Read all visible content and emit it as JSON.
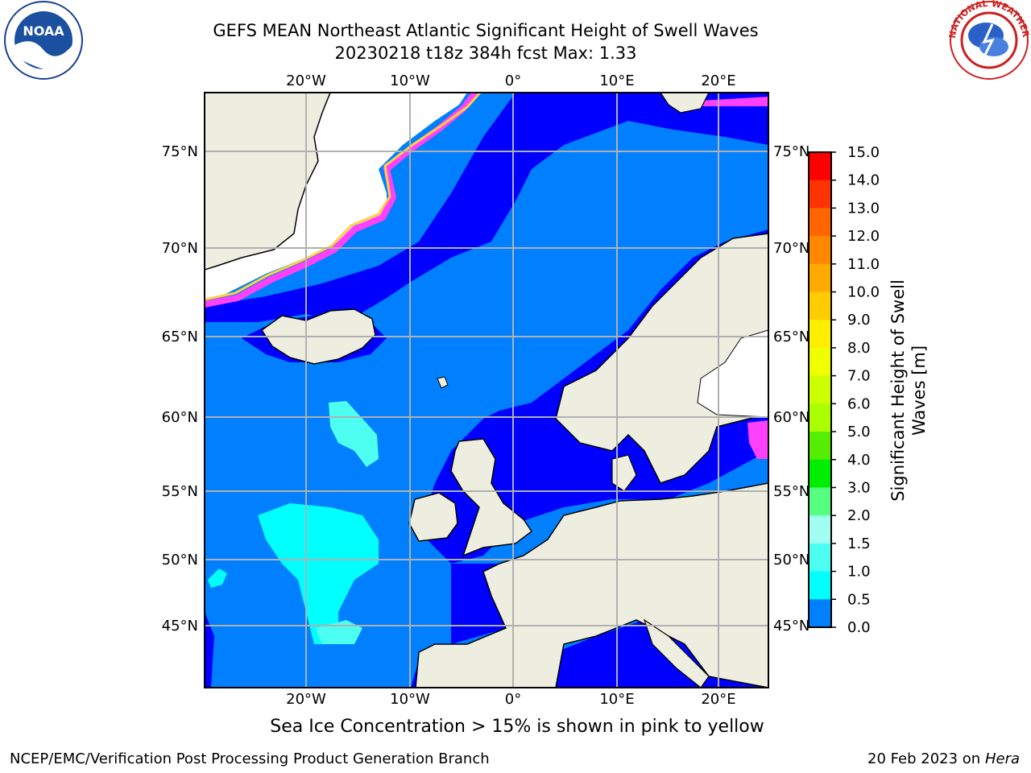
{
  "header": {
    "title_line1": "GEFS MEAN Northeast Atlantic Significant Height of Swell Waves",
    "title_line2": "20230218 t18z 384h fcst   Max: 1.33"
  },
  "logos": {
    "left": {
      "name": "noaa-logo",
      "text": "NOAA"
    },
    "right": {
      "name": "national-weather-service-logo",
      "text": "NATIONAL WEATHER SERVICE"
    }
  },
  "map": {
    "lon_ticks_top": [
      "20°W",
      "10°W",
      "0°",
      "10°E",
      "20°E"
    ],
    "lon_ticks_bottom": [
      "20°W",
      "10°W",
      "0°",
      "10°E",
      "20°E"
    ],
    "lat_ticks_left": [
      "75°N",
      "70°N",
      "65°N",
      "60°N",
      "55°N",
      "50°N",
      "45°N"
    ],
    "lat_ticks_right": [
      "75°N",
      "70°N",
      "65°N",
      "60°N",
      "55°N",
      "50°N",
      "45°N"
    ],
    "colors": {
      "land": "#eeeee0",
      "ice_free_open": "#ffffff",
      "sea_0_05": "#0000ff",
      "sea_05_10": "#0080ff",
      "sea_10_15": "#00ffff",
      "sea_15_20": "#4dfff0",
      "ice_pink": "#ff40ff",
      "ice_yellow": "#ffff40",
      "grid": "#b0b0b0",
      "coast": "#000000"
    }
  },
  "colorbar": {
    "title_line1": "Significant Height of Swell",
    "title_line2": "Waves [m]",
    "ticks": [
      "15.0",
      "14.0",
      "13.0",
      "12.0",
      "11.0",
      "10.0",
      "9.0",
      "8.0",
      "7.0",
      "6.0",
      "5.0",
      "4.0",
      "3.0",
      "2.0",
      "1.5",
      "1.0",
      "0.5",
      "0.0"
    ],
    "colors": [
      "#ff0000",
      "#ff3300",
      "#ff6600",
      "#ff8800",
      "#ffaa00",
      "#ffcc00",
      "#ffee00",
      "#f0ff00",
      "#ccff00",
      "#aaff00",
      "#55ee00",
      "#00ee00",
      "#55ff80",
      "#a0fff0",
      "#4dfff0",
      "#00ffff",
      "#0080ff",
      "#0000ff"
    ]
  },
  "footer": {
    "ice_note": "Sea Ice Concentration > 15% is shown in pink to yellow",
    "left": "NCEP/EMC/Verification Post Processing Product Generation Branch",
    "right_date": "20 Feb 2023 on",
    "right_host": "Hera"
  }
}
